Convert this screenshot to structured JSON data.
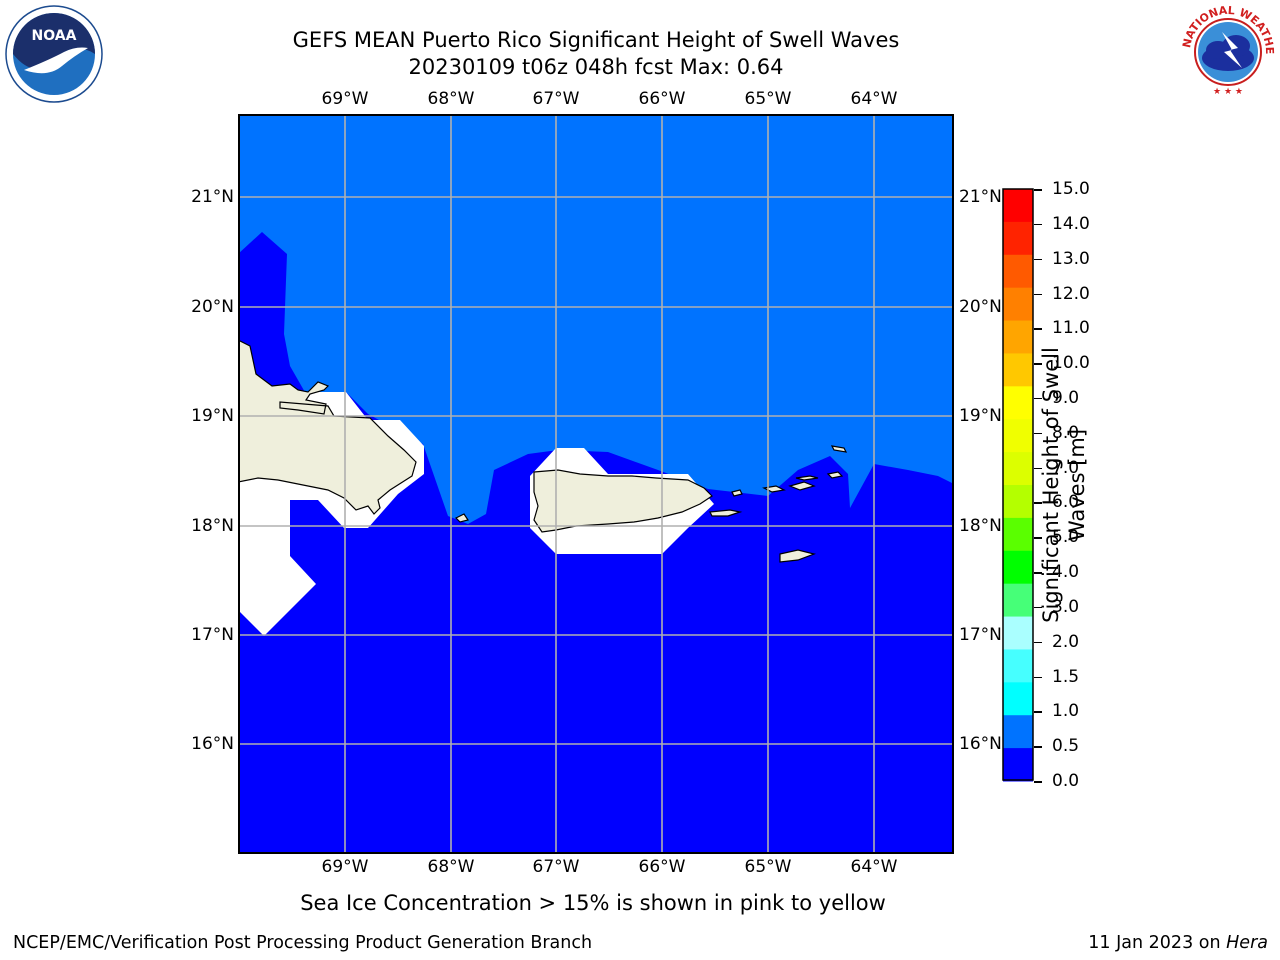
{
  "title_line1": "GEFS MEAN Puerto Rico Significant Height of Swell Waves",
  "title_line2": "20230109 t06z 048h fcst   Max: 0.64",
  "logos": {
    "left": "noaa-logo",
    "right": "nws-logo"
  },
  "map": {
    "lon_ticks": [
      "69°W",
      "68°W",
      "67°W",
      "66°W",
      "65°W",
      "64°W"
    ],
    "lat_ticks": [
      "21°N",
      "20°N",
      "19°N",
      "18°N",
      "17°N",
      "16°N"
    ],
    "colors": {
      "ocean_low": "#0000ff",
      "ocean_mid": "#0073ff",
      "land": "#efefdc",
      "grid": "#b0b0b0"
    }
  },
  "colorbar": {
    "title": "Significant Height of Swell Waves [m]",
    "labels": [
      "15.0",
      "14.0",
      "13.0",
      "12.0",
      "11.0",
      "10.0",
      "9.0",
      "8.0",
      "7.0",
      "6.0",
      "5.0",
      "4.0",
      "3.0",
      "2.0",
      "1.5",
      "1.0",
      "0.5",
      "0.0"
    ],
    "colors": [
      "#ff0000",
      "#ff2300",
      "#ff5a00",
      "#ff8000",
      "#ffa500",
      "#ffc800",
      "#ffff00",
      "#f0ff00",
      "#dcff00",
      "#b4ff00",
      "#5aff00",
      "#00ff00",
      "#46ff78",
      "#aaffff",
      "#46ffff",
      "#00ffff",
      "#0073ff",
      "#0000ff"
    ]
  },
  "note": "Sea Ice Concentration > 15% is shown in pink to yellow",
  "footer": {
    "left": "NCEP/EMC/Verification Post Processing Product Generation Branch",
    "date": "11 Jan 2023 on ",
    "host": "Hera"
  }
}
